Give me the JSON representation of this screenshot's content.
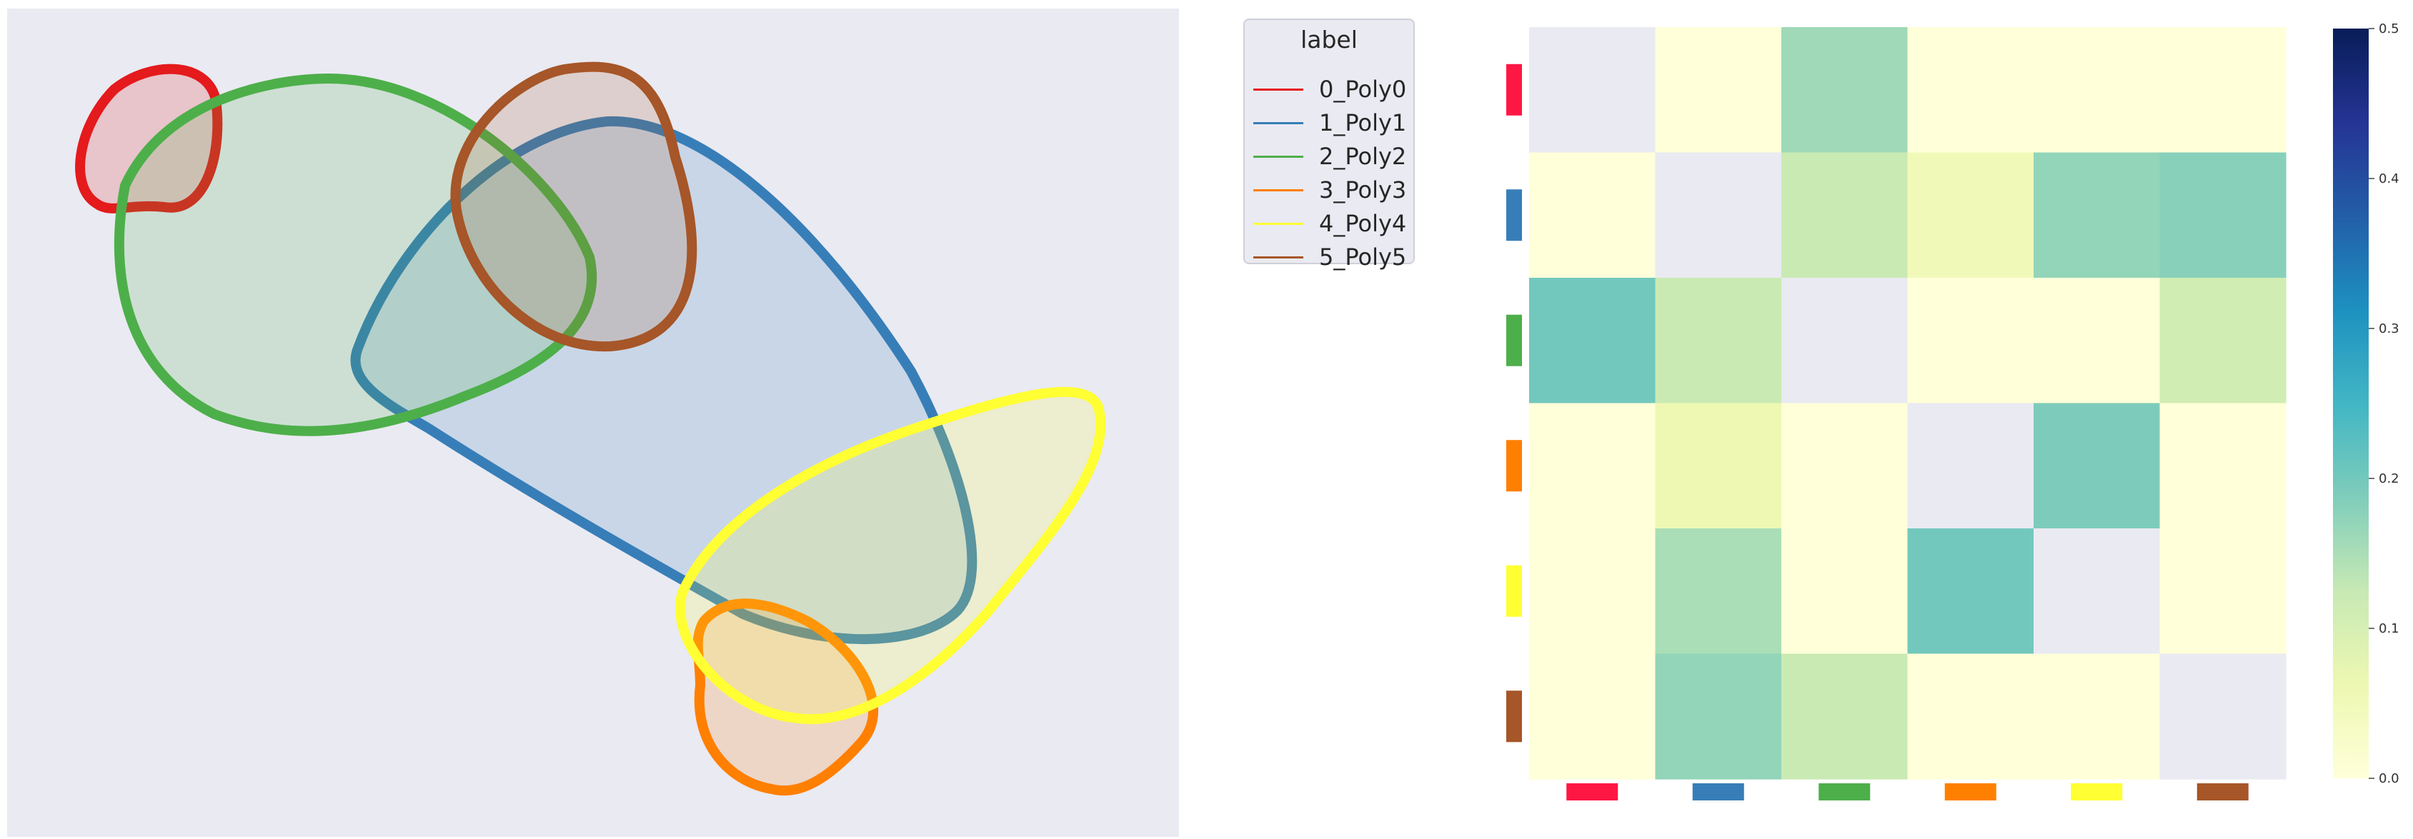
{
  "chart_data": [
    {
      "type": "polygon-overlay",
      "background": "#eaeaf2",
      "legend": {
        "title": "label",
        "placement": "outside-right-top",
        "entries": [
          {
            "label": "0_Poly0",
            "color": "#e41a1c"
          },
          {
            "label": "1_Poly1",
            "color": "#377eb8"
          },
          {
            "label": "2_Poly2",
            "color": "#4daf4a"
          },
          {
            "label": "3_Poly3",
            "color": "#ff7f00"
          },
          {
            "label": "4_Poly4",
            "color": "#ffff33"
          },
          {
            "label": "5_Poly5",
            "color": "#a65628"
          }
        ]
      }
    },
    {
      "type": "heatmap",
      "colormap": "YlGnBu",
      "vmin": 0.0,
      "vmax": 0.5,
      "diagonal": "masked",
      "row_colors": [
        "#ff1744",
        "#377eb8",
        "#4daf4a",
        "#ff7f00",
        "#ffff33",
        "#a65628"
      ],
      "col_colors": [
        "#ff1744",
        "#377eb8",
        "#4daf4a",
        "#ff7f00",
        "#ffff33",
        "#a65628"
      ],
      "matrix": [
        [
          null,
          0.0,
          0.16,
          0.0,
          0.0,
          0.0
        ],
        [
          0.0,
          null,
          0.12,
          0.05,
          0.17,
          0.18
        ],
        [
          0.2,
          0.12,
          null,
          0.0,
          0.0,
          0.11
        ],
        [
          0.0,
          0.06,
          0.0,
          null,
          0.19,
          0.0
        ],
        [
          0.0,
          0.15,
          0.0,
          0.2,
          null,
          0.0
        ],
        [
          0.0,
          0.17,
          0.12,
          0.0,
          0.0,
          null
        ]
      ],
      "colorbar": {
        "ticks": [
          "0.0",
          "0.1",
          "0.2",
          "0.3",
          "0.4",
          "0.5"
        ]
      }
    }
  ]
}
